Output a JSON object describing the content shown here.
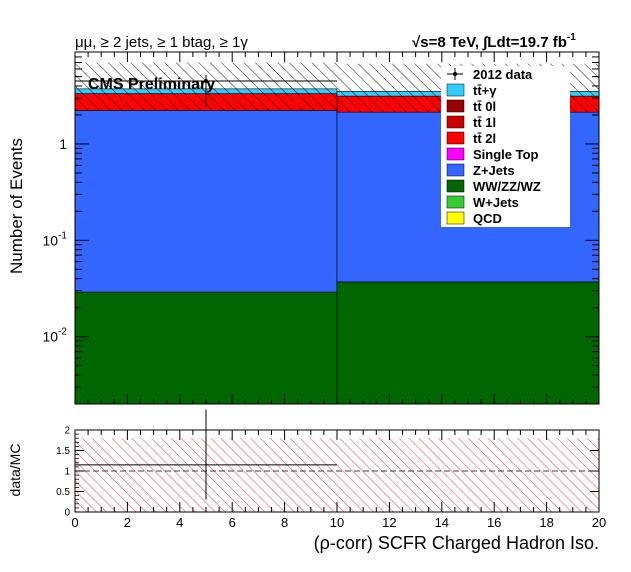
{
  "header": {
    "left": "μμ, ≥ 2 jets, ≥ 1 btag, ≥ 1γ",
    "right": "√s=8 TeV,  ∫Ldt=19.7 fb",
    "right_sup": "-1",
    "preliminary": "CMS Preliminary"
  },
  "colors": {
    "ttgamma": "#33ccff",
    "tt0l": "#990000",
    "tt1l": "#cc0000",
    "tt2l": "#ff0000",
    "singletop": "#ff00ff",
    "zjets": "#3366ff",
    "diboson": "#006600",
    "wjets": "#33cc33",
    "qcd": "#ffff00",
    "data": "#000000",
    "uncert_hatch": "#000000",
    "ratio_hatch": "#ff0000"
  },
  "chart_data": [
    {
      "type": "area",
      "stacked": true,
      "ylabel": "Number of Events",
      "xlim": [
        0,
        20
      ],
      "ylim": [
        0.002,
        9
      ],
      "log_y": true,
      "y_ticks": [
        {
          "value": 0.01,
          "base": "10",
          "exp": "-2"
        },
        {
          "value": 0.1,
          "base": "10",
          "exp": "-1"
        },
        {
          "value": 1,
          "base": "1",
          "exp": ""
        }
      ],
      "bin_edges": [
        0,
        10,
        20
      ],
      "stack_order": [
        "diboson",
        "zjets",
        "tt2l",
        "tt1l",
        "tt0l",
        "ttgamma"
      ],
      "stack": {
        "diboson": [
          0.029,
          0.037
        ],
        "zjets": [
          2.2,
          2.1
        ],
        "tt2l": [
          1.1,
          1.0
        ],
        "tt1l": [
          0.0,
          0.0
        ],
        "tt0l": [
          0.0,
          0.0
        ],
        "ttgamma": [
          0.4,
          0.38
        ]
      },
      "uncert_band": {
        "low": [
          2.25,
          2.15
        ],
        "high": [
          7.0,
          6.8
        ]
      },
      "data": {
        "x": [
          5
        ],
        "y": [
          4.5
        ],
        "xerr": [
          5
        ]
      },
      "legend": [
        {
          "key": "data",
          "label": "2012 data",
          "style": "marker"
        },
        {
          "key": "ttgamma",
          "label": "tt̄+γ",
          "style": "box"
        },
        {
          "key": "tt0l",
          "label": "tt̄ 0l",
          "style": "box"
        },
        {
          "key": "tt1l",
          "label": "tt̄ 1l",
          "style": "box"
        },
        {
          "key": "tt2l",
          "label": "tt̄ 2l",
          "style": "box"
        },
        {
          "key": "singletop",
          "label": "Single Top",
          "style": "box"
        },
        {
          "key": "zjets",
          "label": "Z+Jets",
          "style": "box"
        },
        {
          "key": "diboson",
          "label": "WW/ZZ/WZ",
          "style": "box"
        },
        {
          "key": "wjets",
          "label": "W+Jets",
          "style": "box"
        },
        {
          "key": "qcd",
          "label": "QCD",
          "style": "box"
        }
      ],
      "legend_position": "top-right"
    },
    {
      "type": "scatter",
      "ylabel": "data/MC",
      "xlabel": "(ρ-corr) SCFR Charged Hadron Iso.",
      "xlim": [
        0,
        20
      ],
      "ylim": [
        0,
        2
      ],
      "x_ticks": [
        0,
        2,
        4,
        6,
        8,
        10,
        12,
        14,
        16,
        18,
        20
      ],
      "y_ticks": [
        "0",
        "0.5",
        "1",
        "1.5",
        "2"
      ],
      "reference_line": 1,
      "ratio": {
        "x": [
          5
        ],
        "y": [
          1.15
        ],
        "xerr": [
          5
        ],
        "yerr_low": [
          0.85
        ],
        "yerr_high": [
          1.35
        ]
      },
      "ratio_band": {
        "bin_edges": [
          0,
          10,
          20
        ],
        "low": [
          0,
          0
        ],
        "high": [
          1.8,
          1.8
        ]
      }
    }
  ]
}
